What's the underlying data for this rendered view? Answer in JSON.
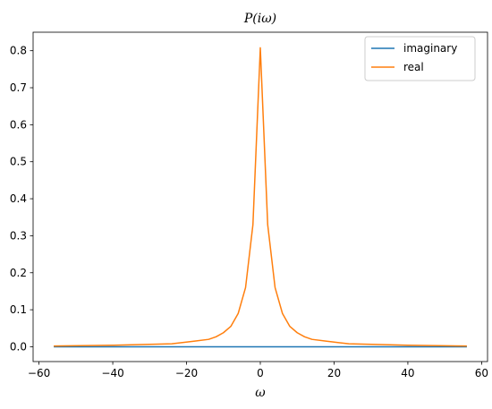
{
  "chart_data": {
    "type": "line",
    "title": "P(iω)",
    "xlabel": "ω",
    "ylabel": "",
    "xlim": [
      -61.6,
      61.6
    ],
    "ylim": [
      -0.04,
      0.85
    ],
    "xticks": [
      -60,
      -40,
      -20,
      0,
      20,
      40,
      60
    ],
    "xtick_labels": [
      "−60",
      "−40",
      "−20",
      "0",
      "20",
      "40",
      "60"
    ],
    "yticks": [
      0.0,
      0.1,
      0.2,
      0.3,
      0.4,
      0.5,
      0.6,
      0.7,
      0.8
    ],
    "ytick_labels": [
      "0.0",
      "0.1",
      "0.2",
      "0.3",
      "0.4",
      "0.5",
      "0.6",
      "0.7",
      "0.8"
    ],
    "grid": false,
    "legend_position": "top-right",
    "series": [
      {
        "name": "imaginary",
        "color": "#1f77b4",
        "x": [
          -56,
          56
        ],
        "y": [
          0.0,
          0.0
        ]
      },
      {
        "name": "real",
        "color": "#ff7f0e",
        "x": [
          -56,
          -40,
          -24,
          -18,
          -14,
          -12,
          -10,
          -8,
          -6,
          -4,
          -2,
          0,
          2,
          4,
          6,
          8,
          10,
          12,
          14,
          18,
          24,
          40,
          56
        ],
        "y": [
          0.002,
          0.004,
          0.008,
          0.015,
          0.02,
          0.027,
          0.038,
          0.055,
          0.09,
          0.16,
          0.33,
          0.808,
          0.33,
          0.16,
          0.09,
          0.055,
          0.038,
          0.027,
          0.02,
          0.015,
          0.008,
          0.004,
          0.002
        ]
      }
    ]
  }
}
